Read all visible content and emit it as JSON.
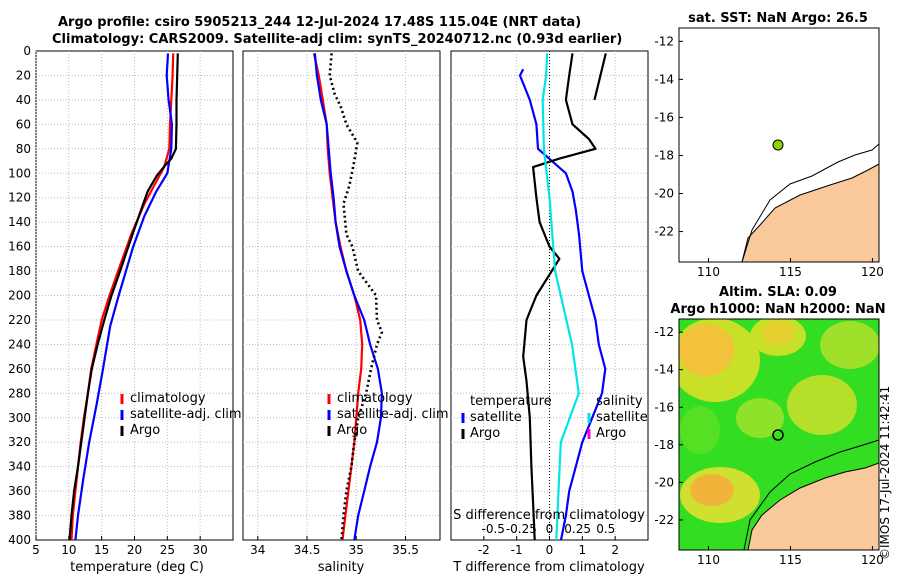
{
  "header": {
    "line1": "Argo profile: csiro 5905213_244 12-Jul-2024 17.48S 115.04E (NRT data)",
    "line2": "Climatology: CARS2009. Satellite-adj clim: synTS_20240712.nc (0.93d earlier)"
  },
  "copyright": "©IMOS 17-Jul-2024 11:42:41",
  "colors": {
    "climatology": "#ff0000",
    "satellite": "#0000ff",
    "argo": "#000000",
    "diff_salinity": "#00e5e5",
    "land": "#f9c89b"
  },
  "chart_data": [
    {
      "type": "line",
      "id": "temperature",
      "xlabel": "temperature (deg C)",
      "ylabel": "",
      "xlim": [
        5,
        35
      ],
      "ylim": [
        400,
        0
      ],
      "xticks": [
        "5",
        "10",
        "15",
        "20",
        "25",
        "30"
      ],
      "yticks": [
        "0",
        "20",
        "40",
        "60",
        "80",
        "100",
        "120",
        "140",
        "160",
        "180",
        "200",
        "220",
        "240",
        "260",
        "280",
        "300",
        "320",
        "340",
        "360",
        "380",
        "400"
      ],
      "legend": [
        "climatology",
        "satellite-adj. clim",
        "Argo"
      ],
      "series": [
        {
          "name": "climatology",
          "points": [
            [
              25.9,
              2
            ],
            [
              25.8,
              20
            ],
            [
              25.6,
              40
            ],
            [
              25.4,
              60
            ],
            [
              25.3,
              80
            ],
            [
              24.5,
              95
            ],
            [
              23,
              110
            ],
            [
              21.5,
              125
            ],
            [
              19.5,
              150
            ],
            [
              17.5,
              180
            ],
            [
              16.2,
              200
            ],
            [
              15,
              220
            ],
            [
              14.2,
              240
            ],
            [
              13.4,
              260
            ],
            [
              12.9,
              280
            ],
            [
              12.3,
              300
            ],
            [
              11.8,
              320
            ],
            [
              11.4,
              340
            ],
            [
              11,
              360
            ],
            [
              10.6,
              380
            ],
            [
              10.4,
              400
            ]
          ]
        },
        {
          "name": "satellite-adj. clim",
          "points": [
            [
              25.1,
              2
            ],
            [
              24.9,
              20
            ],
            [
              25.2,
              40
            ],
            [
              25.7,
              60
            ],
            [
              25.6,
              80
            ],
            [
              25,
              100
            ],
            [
              23.3,
              115
            ],
            [
              21.5,
              135
            ],
            [
              19.8,
              160
            ],
            [
              17.6,
              200
            ],
            [
              16.3,
              225
            ],
            [
              15.2,
              260
            ],
            [
              14.2,
              290
            ],
            [
              13.1,
              320
            ],
            [
              12.2,
              350
            ],
            [
              11.4,
              380
            ],
            [
              11,
              400
            ]
          ]
        },
        {
          "name": "Argo",
          "points": [
            [
              26.6,
              2
            ],
            [
              26.5,
              20
            ],
            [
              26.4,
              40
            ],
            [
              26.4,
              60
            ],
            [
              26.3,
              80
            ],
            [
              25.6,
              88
            ],
            [
              24.6,
              94
            ],
            [
              23.4,
              102
            ],
            [
              22,
              115
            ],
            [
              21,
              130
            ],
            [
              19.7,
              150
            ],
            [
              17.8,
              180
            ],
            [
              16.5,
              200
            ],
            [
              15.4,
              220
            ],
            [
              14.4,
              240
            ],
            [
              13.5,
              260
            ],
            [
              12.9,
              280
            ],
            [
              12.4,
              300
            ],
            [
              11.9,
              320
            ],
            [
              11.4,
              340
            ],
            [
              10.8,
              360
            ],
            [
              10.4,
              380
            ],
            [
              10.1,
              400
            ]
          ]
        }
      ]
    },
    {
      "type": "line",
      "id": "salinity",
      "xlabel": "salinity",
      "xlim": [
        33.85,
        35.85
      ],
      "ylim": [
        400,
        0
      ],
      "xticks": [
        "34",
        "34.5",
        "35",
        "35.5"
      ],
      "legend": [
        "climatology",
        "satellite-adj. clim",
        "Argo"
      ],
      "series": [
        {
          "name": "climatology",
          "points": [
            [
              34.57,
              2
            ],
            [
              34.62,
              20
            ],
            [
              34.66,
              40
            ],
            [
              34.7,
              60
            ],
            [
              34.71,
              80
            ],
            [
              34.73,
              100
            ],
            [
              34.76,
              120
            ],
            [
              34.79,
              140
            ],
            [
              34.84,
              160
            ],
            [
              34.9,
              180
            ],
            [
              34.98,
              200
            ],
            [
              35.04,
              220
            ],
            [
              35.06,
              240
            ],
            [
              35.05,
              260
            ],
            [
              35.02,
              280
            ],
            [
              35,
              300
            ],
            [
              34.98,
              320
            ],
            [
              34.95,
              340
            ],
            [
              34.92,
              360
            ],
            [
              34.89,
              380
            ],
            [
              34.86,
              400
            ]
          ]
        },
        {
          "name": "satellite-adj. clim",
          "points": [
            [
              34.58,
              2
            ],
            [
              34.6,
              20
            ],
            [
              34.64,
              40
            ],
            [
              34.7,
              60
            ],
            [
              34.72,
              80
            ],
            [
              34.74,
              100
            ],
            [
              34.77,
              120
            ],
            [
              34.79,
              140
            ],
            [
              34.83,
              160
            ],
            [
              34.9,
              180
            ],
            [
              34.98,
              200
            ],
            [
              35.08,
              220
            ],
            [
              35.14,
              240
            ],
            [
              35.22,
              260
            ],
            [
              35.26,
              280
            ],
            [
              35.25,
              300
            ],
            [
              35.21,
              320
            ],
            [
              35.14,
              340
            ],
            [
              35.08,
              360
            ],
            [
              35.02,
              380
            ],
            [
              34.98,
              400
            ]
          ]
        },
        {
          "name": "Argo",
          "points": [
            [
              34.75,
              2
            ],
            [
              34.73,
              20
            ],
            [
              34.78,
              35
            ],
            [
              34.84,
              45
            ],
            [
              34.9,
              60
            ],
            [
              35.01,
              75
            ],
            [
              34.98,
              90
            ],
            [
              34.93,
              110
            ],
            [
              34.87,
              125
            ],
            [
              34.9,
              150
            ],
            [
              34.96,
              160
            ],
            [
              35.02,
              180
            ],
            [
              35.2,
              200
            ],
            [
              35.21,
              220
            ],
            [
              35.26,
              230
            ],
            [
              35.21,
              240
            ],
            [
              35.15,
              260
            ],
            [
              35.1,
              280
            ],
            [
              35.02,
              300
            ],
            [
              34.98,
              320
            ],
            [
              34.95,
              340
            ],
            [
              34.9,
              360
            ],
            [
              34.87,
              380
            ],
            [
              34.85,
              400
            ]
          ]
        }
      ]
    },
    {
      "type": "line",
      "id": "difference",
      "xlabel": "T difference from climatology",
      "xlabel2": "S difference from climatology",
      "xlim": [
        -3,
        3
      ],
      "x2lim": [
        -0.875,
        0.875
      ],
      "ylim": [
        400,
        0
      ],
      "xticks": [
        "-2",
        "-1",
        "0",
        "1",
        "2"
      ],
      "x2ticks": [
        "-0.5",
        "-0.25",
        "0",
        "0.25",
        "0.5"
      ],
      "legend_left_title": "temperature",
      "legend_right_title": "salinity",
      "legend": [
        "satellite",
        "Argo"
      ],
      "series": [
        {
          "name": "temperature satellite",
          "axis": "T",
          "points": [
            [
              -0.8,
              15
            ],
            [
              -0.9,
              20
            ],
            [
              -0.6,
              40
            ],
            [
              -0.4,
              60
            ],
            [
              -0.35,
              80
            ],
            [
              0.5,
              100
            ],
            [
              0.7,
              115
            ],
            [
              0.8,
              130
            ],
            [
              0.9,
              150
            ],
            [
              1,
              180
            ],
            [
              1.2,
              200
            ],
            [
              1.4,
              220
            ],
            [
              1.5,
              240
            ],
            [
              1.7,
              260
            ],
            [
              1.6,
              280
            ],
            [
              1.3,
              300
            ],
            [
              1,
              320
            ],
            [
              0.8,
              340
            ],
            [
              0.6,
              360
            ],
            [
              0.5,
              380
            ],
            [
              0.35,
              400
            ]
          ]
        },
        {
          "name": "temperature Argo",
          "axis": "T",
          "points": [
            [
              0.7,
              2
            ],
            [
              0.6,
              20
            ],
            [
              0.5,
              40
            ],
            [
              0.7,
              60
            ],
            [
              1.2,
              72
            ],
            [
              1.4,
              80
            ],
            [
              0.3,
              88
            ],
            [
              -0.5,
              95
            ],
            [
              -0.4,
              120
            ],
            [
              -0.3,
              140
            ],
            [
              0,
              160
            ],
            [
              0.3,
              170
            ],
            [
              -0.4,
              200
            ],
            [
              -0.7,
              220
            ],
            [
              -0.8,
              250
            ],
            [
              -0.7,
              270
            ],
            [
              -0.6,
              300
            ],
            [
              -0.55,
              340
            ],
            [
              -0.5,
              370
            ],
            [
              -0.45,
              400
            ]
          ]
        },
        {
          "name": "salinity satellite",
          "axis": "S",
          "points": [
            [
              -0.02,
              2
            ],
            [
              -0.03,
              20
            ],
            [
              -0.06,
              40
            ],
            [
              -0.05,
              80
            ],
            [
              0.0,
              120
            ],
            [
              0.05,
              180
            ],
            [
              0.1,
              200
            ],
            [
              0.2,
              240
            ],
            [
              0.26,
              280
            ],
            [
              0.1,
              320
            ],
            [
              0.08,
              360
            ],
            [
              0.06,
              400
            ]
          ]
        },
        {
          "name": "salinity Argo",
          "axis": "S",
          "points": [
            [
              0.5,
              2
            ],
            [
              0.4,
              40
            ]
          ]
        }
      ]
    }
  ],
  "maps": {
    "sst": {
      "title": "sat. SST: NaN Argo: 26.5",
      "xticks": [
        "110",
        "115",
        "120"
      ],
      "yticks": [
        "-12",
        "-14",
        "-16",
        "-18",
        "-20",
        "-22"
      ]
    },
    "sla": {
      "title1": "Altim. SLA: 0.09",
      "title2": "Argo h1000: NaN h2000: NaN",
      "xticks": [
        "110",
        "115",
        "120"
      ],
      "yticks": [
        "-12",
        "-14",
        "-16",
        "-18",
        "-20",
        "-22"
      ]
    }
  }
}
